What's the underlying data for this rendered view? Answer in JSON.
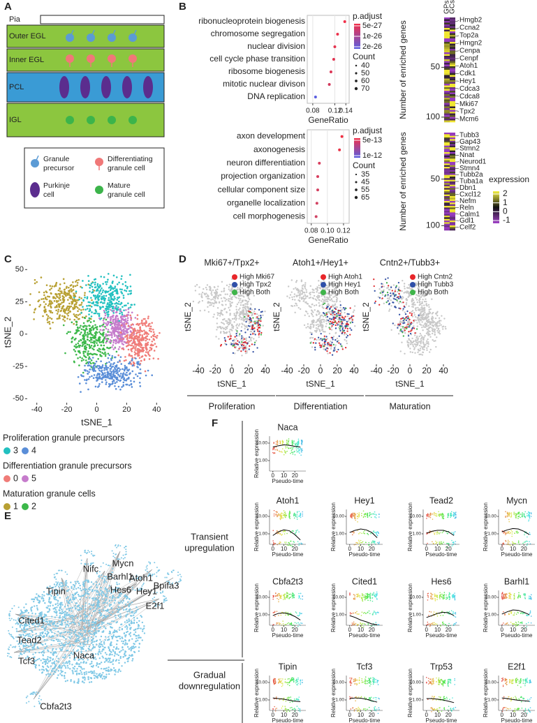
{
  "A": {
    "label": "A",
    "layers": [
      "Pia",
      "Outer EGL",
      "Inner EGL",
      "PCL",
      "IGL"
    ],
    "legend": [
      [
        "Granule",
        "precursor"
      ],
      [
        "Differentiating",
        "granule cell"
      ],
      [
        "Purkinje",
        "cell"
      ],
      [
        "Mature",
        "granule cell"
      ]
    ]
  },
  "B": {
    "label": "B",
    "dotplots": [
      {
        "terms": [
          "ribonucleoprotein biogenesis",
          "chromosome segregation",
          "nuclear division",
          "cell cycle phase transition",
          "ribosome biogenesis",
          "mitotic nuclear divison",
          "DNA replication"
        ],
        "ratios": [
          0.138,
          0.125,
          0.12,
          0.118,
          0.113,
          0.11,
          0.085
        ],
        "colors": [
          "#f2304a",
          "#ec324c",
          "#e43450",
          "#e23452",
          "#dc3656",
          "#d2395c",
          "#5a5ee0"
        ],
        "xlim": [
          0.07,
          0.146
        ],
        "xticks": [
          0.08,
          0.12,
          0.14
        ],
        "xlabel": "GeneRatio",
        "color_title": "p.adjust",
        "color_ticks": [
          5e-27,
          1e-26,
          2e-26
        ],
        "size_title": "Count",
        "size_ticks": [
          40,
          50,
          60,
          70
        ]
      },
      {
        "terms": [
          "axon development",
          "axonogenesis",
          "neuron differentiation",
          "projection organization",
          "cellular component size",
          "organelle localization",
          "cell morphogenesis"
        ],
        "ratios": [
          0.118,
          0.115,
          0.09,
          0.088,
          0.088,
          0.087,
          0.086
        ],
        "colors": [
          "#f02e40",
          "#e83448",
          "#d83e5e",
          "#d83e5e",
          "#d44060",
          "#d24262",
          "#d04464"
        ],
        "xlim": [
          0.075,
          0.127
        ],
        "xticks": [
          0.08,
          {
            "value": 0.1,
            "label": "0.10"
          },
          0.12
        ],
        "xlabel": "GeneRatio",
        "color_title": "p.adjust",
        "color_ticks": [
          5e-13,
          1e-12
        ],
        "size_title": "Count",
        "size_ticks": [
          35,
          45,
          55,
          65
        ]
      }
    ],
    "heatmaps": {
      "columns": [
        "GPs",
        "GCs"
      ],
      "ylabel": "Number of enriched genes",
      "ylim": [
        0,
        105
      ],
      "yticks": [
        50,
        100
      ],
      "panels": [
        {
          "genes": [
            "Hmgb2",
            "Ccna2",
            "Top2a",
            "Hmgn2",
            "Cenpa",
            "Cenpf",
            "Atoh1",
            "Cdk1",
            "Hey1",
            "Cdca3",
            "Cdca8",
            "Mki67",
            "Tpx2",
            "Mcm6"
          ]
        },
        {
          "genes": [
            "Tubb3",
            "Gap43",
            "Stmn2",
            "Nnat",
            "Neurod1",
            "Stmn4",
            "Tubb2a",
            "Tuba1a",
            "Dbn1",
            "Cxcl12",
            "Nefm",
            "Reln",
            "Calm1",
            "Gdl1",
            "Celf2"
          ]
        }
      ],
      "legend_title": "expression",
      "legend_ticks": [
        2,
        1,
        0,
        -1
      ]
    }
  },
  "C": {
    "label": "C",
    "xlabel": "tSNE_1",
    "ylabel": "tSNE_2",
    "xlim": [
      -45,
      45
    ],
    "ylim": [
      -52,
      55
    ],
    "xticks": [
      -40,
      -20,
      0,
      20,
      40
    ],
    "yticks": [
      -50,
      -25,
      0,
      25,
      50
    ],
    "groups": [
      {
        "name": "Proliferation granule precursors",
        "clusters": [
          {
            "id": "3",
            "color": "#22c0c0"
          },
          {
            "id": "4",
            "color": "#5a8ed8"
          }
        ]
      },
      {
        "name": "Differentiation granule precursors",
        "clusters": [
          {
            "id": "0",
            "color": "#f07c78"
          },
          {
            "id": "5",
            "color": "#c67ccc"
          }
        ]
      },
      {
        "name": "Maturation granule cells",
        "clusters": [
          {
            "id": "1",
            "color": "#b8a033"
          },
          {
            "id": "2",
            "color": "#3cb84a"
          }
        ]
      }
    ]
  },
  "D": {
    "label": "D",
    "xlabel": "tSNE_1",
    "ylabel": "tSNE_2",
    "xlim": [
      -45,
      45
    ],
    "xticks": [
      -40,
      -20,
      0,
      20,
      40
    ],
    "panels": [
      {
        "title": "Mki67+/Tpx2+",
        "legend": [
          {
            "name": "High Mki67",
            "color": "#e8262a"
          },
          {
            "name": "High Tpx2",
            "color": "#2f4fa8"
          },
          {
            "name": "High Both",
            "color": "#3fb54a"
          }
        ],
        "stage": "Proliferation"
      },
      {
        "title": "Atoh1+/Hey1+",
        "legend": [
          {
            "name": "High Atoh1",
            "color": "#e8262a"
          },
          {
            "name": "High Hey1",
            "color": "#2f4fa8"
          },
          {
            "name": "High Both",
            "color": "#3fb54a"
          }
        ],
        "stage": "Differentiation"
      },
      {
        "title": "Cntn2+/Tubb3+",
        "legend": [
          {
            "name": "High Cntn2",
            "color": "#e8262a"
          },
          {
            "name": "High Tubb3",
            "color": "#2f4fa8"
          },
          {
            "name": "High Both",
            "color": "#3fb54a"
          }
        ],
        "stage": "Maturation"
      }
    ]
  },
  "E": {
    "label": "E",
    "genes": [
      "Tipin",
      "Nifc",
      "Mycn",
      "Atoh1",
      "Bpifa3",
      "Barhl1",
      "Hey1",
      "Hes6",
      "E2f1",
      "Cited1",
      "Tead2",
      "Tcf3",
      "Naca",
      "Cbfa2t3"
    ]
  },
  "F": {
    "label": "F",
    "groups": [
      [
        "Transient",
        "upregulation"
      ],
      [
        "Gradual",
        "downregulation"
      ]
    ],
    "ylabel": "Relative expression",
    "xlabel": "Pseudo-time",
    "xlim": [
      -3,
      30
    ],
    "xticks": [
      0,
      10,
      20
    ],
    "ylim": [
      0.25,
      25
    ],
    "log_y": true,
    "yticks": [
      {
        "value": 10,
        "label": "10.00"
      },
      {
        "value": 1,
        "label": "1.00"
      }
    ],
    "curve_x": [
      0,
      5,
      10,
      15,
      20,
      25
    ],
    "genes": [
      {
        "name": "Naca",
        "curve": [
          6,
          7,
          8,
          7.5,
          6.5,
          6
        ]
      },
      {
        "name": "Atoh1",
        "curve": [
          0.8,
          1.3,
          1.7,
          1.5,
          0.9,
          0.45
        ]
      },
      {
        "name": "Hey1",
        "curve": [
          1.2,
          1.6,
          1.9,
          1.7,
          1.2,
          0.6
        ]
      },
      {
        "name": "Tead2",
        "curve": [
          1.1,
          1.4,
          1.6,
          1.6,
          1.3,
          0.8
        ]
      },
      {
        "name": "Mycn",
        "curve": [
          1.3,
          1.7,
          2.0,
          1.9,
          1.4,
          0.9
        ]
      },
      {
        "name": "Cbfa2t3",
        "curve": [
          0.9,
          1.2,
          1.3,
          1.1,
          0.8,
          0.5
        ]
      },
      {
        "name": "Cited1",
        "curve": [
          0.9,
          0.7,
          0.5,
          0.4,
          0.3,
          0.27
        ]
      },
      {
        "name": "Hes6",
        "curve": [
          0.7,
          0.9,
          1.2,
          1.4,
          1.3,
          0.9
        ]
      },
      {
        "name": "Barhl1",
        "curve": [
          1.1,
          1.5,
          1.9,
          1.8,
          1.4,
          1.0
        ]
      },
      {
        "name": "Tipin",
        "curve": [
          1.3,
          1.2,
          1.1,
          0.95,
          0.85,
          0.8
        ]
      },
      {
        "name": "Tcf3",
        "curve": [
          1.2,
          1.3,
          1.25,
          1.1,
          0.9,
          0.75
        ]
      },
      {
        "name": "Trp53",
        "curve": [
          1.2,
          1.2,
          1.1,
          1.0,
          0.85,
          0.7
        ]
      },
      {
        "name": "E2f1",
        "curve": [
          1.3,
          1.2,
          1.05,
          0.95,
          0.9,
          0.85
        ]
      }
    ]
  }
}
